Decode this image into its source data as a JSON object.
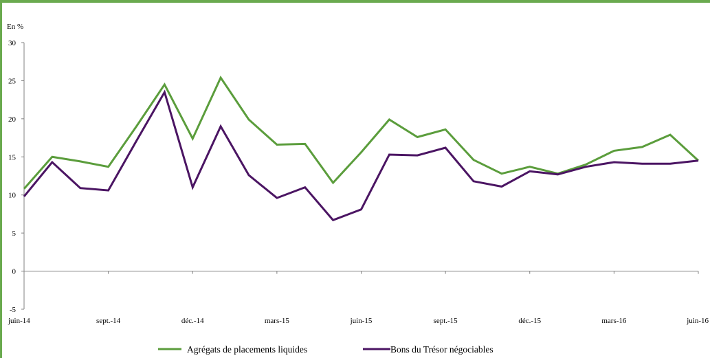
{
  "chart_data": {
    "type": "line",
    "ylabel": "En %",
    "ylim": [
      -5,
      30
    ],
    "yticks": [
      -5,
      0,
      5,
      10,
      15,
      20,
      25,
      30
    ],
    "x_tick_labels": [
      "juin-14",
      "sept.-14",
      "déc.-14",
      "mars-15",
      "juin-15",
      "sept.-15",
      "déc.-15",
      "mars-16",
      "juin-16"
    ],
    "grid": false,
    "legend": "bottom",
    "series": [
      {
        "name": "Agrégats de placements liquides",
        "color": "#5b9d3c",
        "values": [
          10.8,
          15.0,
          14.4,
          13.7,
          19.0,
          24.5,
          17.4,
          25.4,
          19.9,
          16.6,
          16.7,
          11.6,
          15.6,
          19.9,
          17.6,
          18.6,
          14.6,
          12.8,
          13.7,
          12.8,
          14.0,
          15.8,
          16.3,
          17.9,
          14.5
        ]
      },
      {
        "name": "Bons du Trésor négociables",
        "color": "#4b1563",
        "values": [
          9.8,
          14.3,
          10.9,
          10.6,
          17.1,
          23.5,
          11.0,
          19.0,
          12.6,
          9.6,
          11.0,
          6.7,
          8.1,
          15.3,
          15.2,
          16.2,
          11.8,
          11.1,
          13.1,
          12.7,
          13.7,
          14.3,
          14.1,
          14.1,
          14.5
        ]
      }
    ]
  }
}
